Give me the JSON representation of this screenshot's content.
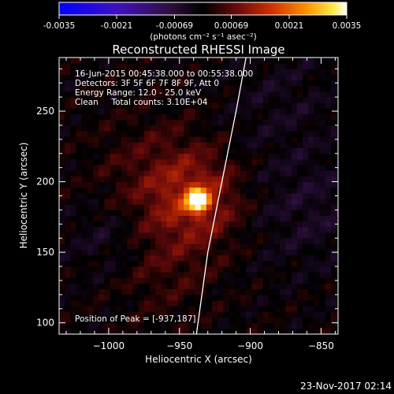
{
  "colorbar": {
    "tick_labels": [
      "-0.0035",
      "-0.0021",
      "-0.00069",
      "0.00069",
      "0.0021",
      "0.0035"
    ],
    "tick_values": [
      -0.0035,
      -0.0021,
      -0.00069,
      0.00069,
      0.0021,
      0.0035
    ],
    "range": [
      -0.0035,
      0.0035
    ],
    "units": "(photons cm⁻² s⁻¹ asec⁻²)",
    "colormap": "blue-purple-black-red-orange-yellow-white"
  },
  "chart_data": {
    "type": "heatmap",
    "title": "Reconstructed RHESSI Image",
    "xlabel": "Heliocentric X (arcsec)",
    "ylabel": "Heliocentric Y (arcsec)",
    "xlim": [
      -1035,
      -838
    ],
    "ylim": [
      92,
      288
    ],
    "x_ticks": [
      -1000,
      -950,
      -900,
      -850
    ],
    "x_tick_labels": [
      "−1000",
      "−950",
      "−900",
      "−850"
    ],
    "y_ticks": [
      100,
      150,
      200,
      250
    ],
    "y_tick_labels": [
      "100",
      "150",
      "200",
      "250"
    ],
    "peak": {
      "x": -937,
      "y": 187,
      "value": 0.0035
    },
    "limb_curve": {
      "x": [
        -938,
        -930,
        -920,
        -910,
        -903
      ],
      "y": [
        92,
        150,
        200,
        250,
        288
      ]
    },
    "annotations": [
      "16-Jun-2015 00:45:38.000 to 00:55:38.000",
      "Detectors: 3F 5F 6F 7F 8F 9F, Att 0",
      "Energy Range: 12.0 - 25.0 keV",
      "Clean     Total counts: 3.10E+04"
    ],
    "peak_label": "Position of Peak = [-937,187]",
    "grid": false
  },
  "footer": {
    "timestamp": "23-Nov-2017 02:14"
  }
}
